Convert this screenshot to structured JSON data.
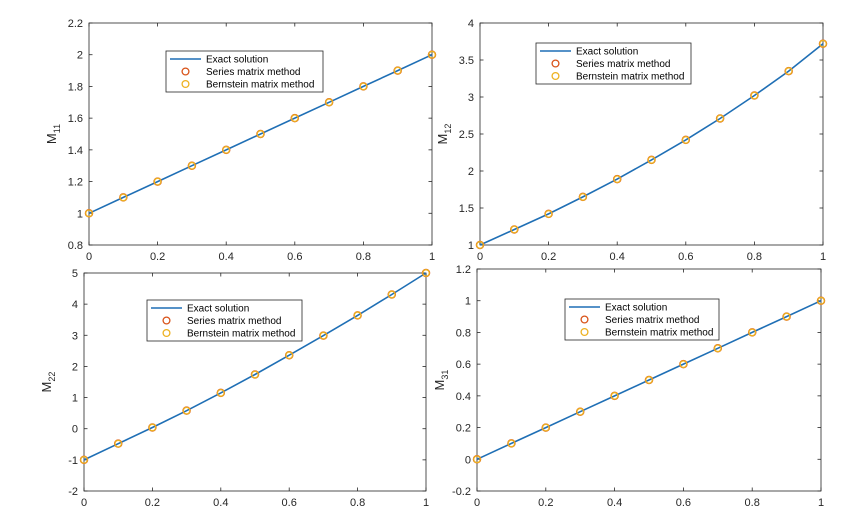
{
  "chart_data": [
    {
      "type": "line",
      "ylabel_main": "M",
      "ylabel_sub": "11",
      "xlim": [
        0,
        1
      ],
      "ylim": [
        0.8,
        2.2
      ],
      "xticks": [
        0,
        0.2,
        0.4,
        0.6,
        0.8,
        1
      ],
      "xtick_labels": [
        "0",
        "0.2",
        "0.4",
        "0.6",
        "0.8",
        "1"
      ],
      "yticks": [
        0.8,
        1,
        1.2,
        1.4,
        1.6,
        1.8,
        2,
        2.2
      ],
      "ytick_labels": [
        "0.8",
        "1",
        "1.2",
        "1.4",
        "1.6",
        "1.8",
        "2",
        "2.2"
      ],
      "x": [
        0,
        0.1,
        0.2,
        0.3,
        0.4,
        0.5,
        0.6,
        0.7,
        0.8,
        0.9,
        1
      ],
      "series": [
        {
          "name": "Exact solution",
          "style": "line",
          "color": "#1f6fb5",
          "values": [
            1,
            1.1,
            1.2,
            1.3,
            1.4,
            1.5,
            1.6,
            1.7,
            1.8,
            1.9,
            2
          ]
        },
        {
          "name": "Series matrix method",
          "style": "marker",
          "color": "#d95319",
          "values": [
            1,
            1.1,
            1.2,
            1.3,
            1.4,
            1.5,
            1.6,
            1.7,
            1.8,
            1.9,
            2
          ]
        },
        {
          "name": "Bernstein matrix method",
          "style": "marker",
          "color": "#edb120",
          "values": [
            1,
            1.1,
            1.2,
            1.3,
            1.4,
            1.5,
            1.6,
            1.7,
            1.8,
            1.9,
            2
          ]
        }
      ],
      "legend_position": "top-center"
    },
    {
      "type": "line",
      "ylabel_main": "M",
      "ylabel_sub": "12",
      "xlim": [
        0,
        1
      ],
      "ylim": [
        1,
        4
      ],
      "xticks": [
        0,
        0.2,
        0.4,
        0.6,
        0.8,
        1
      ],
      "xtick_labels": [
        "0",
        "0.2",
        "0.4",
        "0.6",
        "0.8",
        "1"
      ],
      "yticks": [
        1,
        1.5,
        2,
        2.5,
        3,
        3.5,
        4
      ],
      "ytick_labels": [
        "1",
        "1.5",
        "2",
        "2.5",
        "3",
        "3.5",
        "4"
      ],
      "x": [
        0,
        0.1,
        0.2,
        0.3,
        0.4,
        0.5,
        0.6,
        0.7,
        0.8,
        0.9,
        1
      ],
      "series": [
        {
          "name": "Exact solution",
          "style": "line",
          "color": "#1f6fb5",
          "values": [
            1.0,
            1.21,
            1.42,
            1.65,
            1.89,
            2.15,
            2.42,
            2.71,
            3.02,
            3.35,
            3.72
          ]
        },
        {
          "name": "Series matrix method",
          "style": "marker",
          "color": "#d95319",
          "values": [
            1.0,
            1.21,
            1.42,
            1.65,
            1.89,
            2.15,
            2.42,
            2.71,
            3.02,
            3.35,
            3.72
          ]
        },
        {
          "name": "Bernstein matrix method",
          "style": "marker",
          "color": "#edb120",
          "values": [
            1.0,
            1.21,
            1.42,
            1.65,
            1.89,
            2.15,
            2.42,
            2.71,
            3.02,
            3.35,
            3.72
          ]
        }
      ],
      "legend_position": "top-center"
    },
    {
      "type": "line",
      "ylabel_main": "M",
      "ylabel_sub": "22",
      "xlim": [
        0,
        1
      ],
      "ylim": [
        -2,
        5
      ],
      "xticks": [
        0,
        0.2,
        0.4,
        0.6,
        0.8,
        1
      ],
      "xtick_labels": [
        "0",
        "0.2",
        "0.4",
        "0.6",
        "0.8",
        "1"
      ],
      "yticks": [
        -2,
        -1,
        0,
        1,
        2,
        3,
        4,
        5
      ],
      "ytick_labels": [
        "-2",
        "-1",
        "0",
        "1",
        "2",
        "3",
        "4",
        "5"
      ],
      "x": [
        0,
        0.1,
        0.2,
        0.3,
        0.4,
        0.5,
        0.6,
        0.7,
        0.8,
        0.9,
        1
      ],
      "series": [
        {
          "name": "Exact solution",
          "style": "line",
          "color": "#1f6fb5",
          "values": [
            -1.0,
            -0.48,
            0.04,
            0.58,
            1.15,
            1.74,
            2.36,
            2.99,
            3.64,
            4.31,
            5.0
          ]
        },
        {
          "name": "Series matrix method",
          "style": "marker",
          "color": "#d95319",
          "values": [
            -1.0,
            -0.48,
            0.04,
            0.58,
            1.15,
            1.74,
            2.36,
            2.99,
            3.64,
            4.31,
            5.0
          ]
        },
        {
          "name": "Bernstein matrix method",
          "style": "marker",
          "color": "#edb120",
          "values": [
            -1.0,
            -0.48,
            0.04,
            0.58,
            1.15,
            1.74,
            2.36,
            2.99,
            3.64,
            4.31,
            5.0
          ]
        }
      ],
      "legend_position": "top-center"
    },
    {
      "type": "line",
      "ylabel_main": "M",
      "ylabel_sub": "31",
      "xlim": [
        0,
        1
      ],
      "ylim": [
        -0.2,
        1.2
      ],
      "xticks": [
        0,
        0.2,
        0.4,
        0.6,
        0.8,
        1
      ],
      "xtick_labels": [
        "0",
        "0.2",
        "0.4",
        "0.6",
        "0.8",
        "1"
      ],
      "yticks": [
        -0.2,
        0,
        0.2,
        0.4,
        0.6,
        0.8,
        1,
        1.2
      ],
      "ytick_labels": [
        "-0.2",
        "0",
        "0.2",
        "0.4",
        "0.6",
        "0.8",
        "1",
        "1.2"
      ],
      "x": [
        0,
        0.1,
        0.2,
        0.3,
        0.4,
        0.5,
        0.6,
        0.7,
        0.8,
        0.9,
        1
      ],
      "series": [
        {
          "name": "Exact solution",
          "style": "line",
          "color": "#1f6fb5",
          "values": [
            0,
            0.1,
            0.2,
            0.3,
            0.4,
            0.5,
            0.6,
            0.7,
            0.8,
            0.9,
            1
          ]
        },
        {
          "name": "Series matrix method",
          "style": "marker",
          "color": "#d95319",
          "values": [
            0,
            0.1,
            0.2,
            0.3,
            0.4,
            0.5,
            0.6,
            0.7,
            0.8,
            0.9,
            1
          ]
        },
        {
          "name": "Bernstein matrix method",
          "style": "marker",
          "color": "#edb120",
          "values": [
            0,
            0.1,
            0.2,
            0.3,
            0.4,
            0.5,
            0.6,
            0.7,
            0.8,
            0.9,
            1
          ]
        }
      ],
      "legend_position": "top-center"
    }
  ]
}
